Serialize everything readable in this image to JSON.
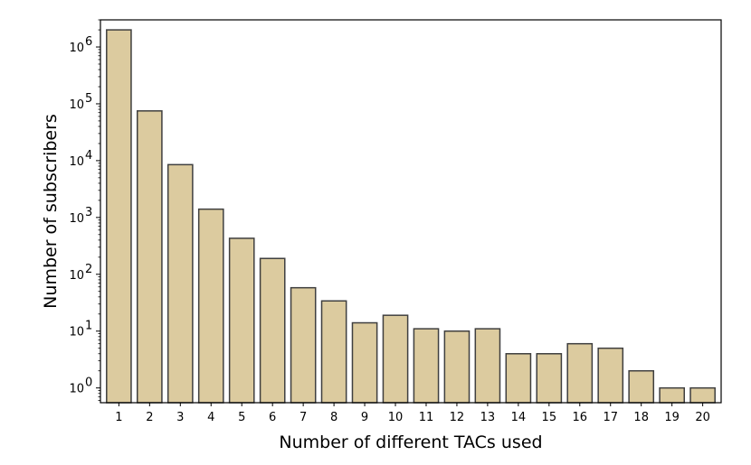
{
  "chart_data": {
    "type": "bar",
    "title": "",
    "xlabel": "Number of different TACs used",
    "ylabel": "Number of subscribers",
    "yscale": "log",
    "ylim": [
      0.55,
      3000000
    ],
    "grid": false,
    "legend": "none",
    "categories": [
      "1",
      "2",
      "3",
      "4",
      "5",
      "6",
      "7",
      "8",
      "9",
      "10",
      "11",
      "12",
      "13",
      "14",
      "15",
      "16",
      "17",
      "18",
      "19",
      "20"
    ],
    "values": [
      2000000,
      75000,
      8500,
      1400,
      430,
      190,
      58,
      34,
      14,
      19,
      11,
      10,
      11,
      4,
      4,
      6,
      5,
      2,
      1,
      1
    ],
    "y_ticks": [
      {
        "value": 1,
        "base": "10",
        "exp": "0"
      },
      {
        "value": 10,
        "base": "10",
        "exp": "1"
      },
      {
        "value": 100,
        "base": "10",
        "exp": "2"
      },
      {
        "value": 1000,
        "base": "10",
        "exp": "3"
      },
      {
        "value": 10000,
        "base": "10",
        "exp": "4"
      },
      {
        "value": 100000,
        "base": "10",
        "exp": "5"
      },
      {
        "value": 1000000,
        "base": "10",
        "exp": "6"
      }
    ],
    "colors": {
      "bar_fill": "#dccb9f",
      "bar_edge": "#3f3f3f"
    }
  }
}
